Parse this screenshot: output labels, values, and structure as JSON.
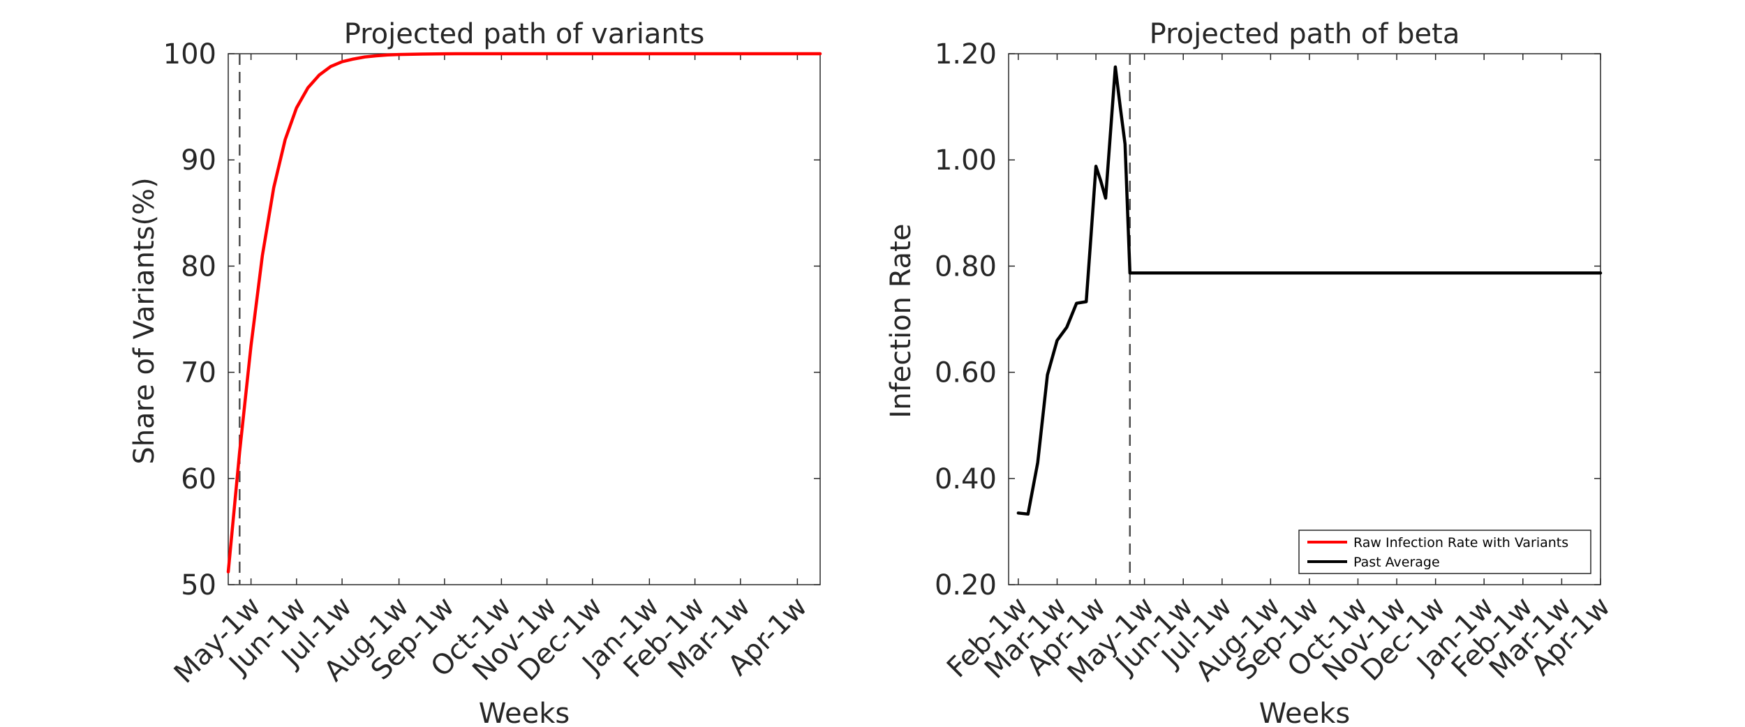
{
  "chart_data": [
    {
      "type": "line",
      "title": "Projected path of variants",
      "xlabel": "Weeks",
      "ylabel": "Share of Variants(%)",
      "xlim": [
        0,
        52
      ],
      "ylim": [
        50,
        100
      ],
      "yticks": [
        50,
        60,
        70,
        80,
        90,
        100
      ],
      "ytick_labels": [
        "50",
        "60",
        "70",
        "80",
        "90",
        "100"
      ],
      "xticks": [
        {
          "x": 2,
          "label": "May-1w"
        },
        {
          "x": 6,
          "label": "Jun-1w"
        },
        {
          "x": 10,
          "label": "Jul-1w"
        },
        {
          "x": 15,
          "label": "Aug-1w"
        },
        {
          "x": 19,
          "label": "Sep-1w"
        },
        {
          "x": 24,
          "label": "Oct-1w"
        },
        {
          "x": 28,
          "label": "Nov-1w"
        },
        {
          "x": 32,
          "label": "Dec-1w"
        },
        {
          "x": 37,
          "label": "Jan-1w"
        },
        {
          "x": 41,
          "label": "Feb-1w"
        },
        {
          "x": 45,
          "label": "Mar-1w"
        },
        {
          "x": 50,
          "label": "Apr-1w"
        }
      ],
      "vline": {
        "x": 1,
        "style": "dashed",
        "color": "#4d4d4d"
      },
      "series": [
        {
          "color": "#ff0000",
          "x": [
            0,
            1,
            2,
            3,
            4,
            5,
            6,
            7,
            8,
            9,
            10,
            11,
            12,
            13,
            14,
            15,
            17,
            20,
            25,
            30,
            35,
            40,
            45,
            52
          ],
          "y": [
            51.2,
            62.5,
            72.5,
            81.0,
            87.4,
            91.9,
            94.9,
            96.8,
            98.0,
            98.8,
            99.25,
            99.5,
            99.7,
            99.8,
            99.88,
            99.93,
            99.97,
            100,
            100,
            100,
            100,
            100,
            100,
            100
          ]
        }
      ]
    },
    {
      "type": "line",
      "title": "Projected path of beta",
      "xlabel": "Weeks",
      "ylabel": "Infection Rate",
      "xlim": [
        -1,
        60
      ],
      "ylim": [
        0.2,
        1.2
      ],
      "yticks": [
        0.2,
        0.4,
        0.6,
        0.8,
        1.0,
        1.2
      ],
      "ytick_labels": [
        "0.20",
        "0.40",
        "0.60",
        "0.80",
        "1.00",
        "1.20"
      ],
      "xticks": [
        {
          "x": 0,
          "label": "Feb-1w"
        },
        {
          "x": 4,
          "label": "Mar-1w"
        },
        {
          "x": 8,
          "label": "Apr-1w"
        },
        {
          "x": 13,
          "label": "May-1w"
        },
        {
          "x": 17,
          "label": "Jun-1w"
        },
        {
          "x": 21,
          "label": "Jul-1w"
        },
        {
          "x": 26,
          "label": "Aug-1w"
        },
        {
          "x": 30,
          "label": "Sep-1w"
        },
        {
          "x": 35,
          "label": "Oct-1w"
        },
        {
          "x": 39,
          "label": "Nov-1w"
        },
        {
          "x": 43,
          "label": "Dec-1w"
        },
        {
          "x": 48,
          "label": "Jan-1w"
        },
        {
          "x": 52,
          "label": "Feb-1w"
        },
        {
          "x": 56,
          "label": "Mar-1w"
        },
        {
          "x": 60,
          "label": "Apr-1w"
        }
      ],
      "vline": {
        "x": 11.5,
        "style": "dashed",
        "color": "#4d4d4d"
      },
      "legend": {
        "position": "bottom-right"
      },
      "series": [
        {
          "name": "Raw Infection Rate with Variants",
          "color": "#ff0000",
          "x": [],
          "y": []
        },
        {
          "name": "Past Average",
          "color": "#000000",
          "x": [
            0,
            1,
            2,
            3,
            4,
            5,
            6,
            7,
            7.5,
            8,
            8.5,
            9,
            10,
            10.5,
            11,
            11.5,
            60
          ],
          "y": [
            0.335,
            0.333,
            0.43,
            0.595,
            0.66,
            0.685,
            0.73,
            0.733,
            0.86,
            0.988,
            0.96,
            0.928,
            1.175,
            1.1,
            1.03,
            0.787,
            0.787
          ]
        }
      ]
    }
  ]
}
